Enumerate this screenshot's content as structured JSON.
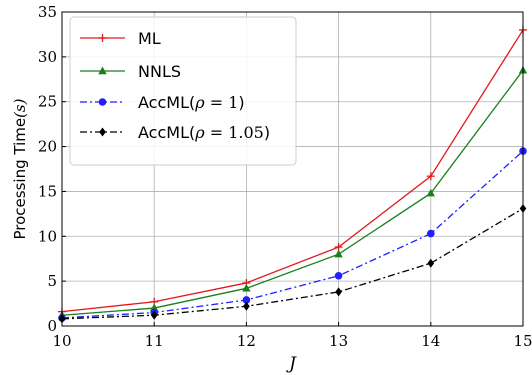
{
  "chart_data": {
    "type": "line",
    "x": [
      10,
      11,
      12,
      13,
      14,
      15
    ],
    "xlabel": "J",
    "ylabel_main": "Processing Time",
    "ylabel_unit": "(s)",
    "xlim": [
      10,
      15
    ],
    "ylim": [
      0,
      35
    ],
    "xticks": [
      "10",
      "11",
      "12",
      "13",
      "14",
      "15"
    ],
    "yticks": [
      "0",
      "5",
      "10",
      "15",
      "20",
      "25",
      "30",
      "35"
    ],
    "grid": true,
    "legend_position": "top-left",
    "series": [
      {
        "name": "ML",
        "color": "#e31a1c",
        "marker": "plus",
        "dash": "solid",
        "values": [
          1.6,
          2.7,
          4.8,
          8.8,
          16.7,
          33.0
        ]
      },
      {
        "name": "NNLS",
        "color": "#1a7f1a",
        "marker": "triangle",
        "dash": "solid",
        "values": [
          1.2,
          2.0,
          4.2,
          8.0,
          14.8,
          28.5
        ]
      },
      {
        "name_prefix": "AccML(",
        "name_math": "ρ",
        "name_rest": " = ",
        "name_num": "1",
        "name_suffix": ")",
        "color": "#1f1fff",
        "marker": "circle",
        "dash": "dashdot",
        "values": [
          0.9,
          1.5,
          2.9,
          5.6,
          10.3,
          19.5
        ]
      },
      {
        "name_prefix": "AccML(",
        "name_math": "ρ",
        "name_rest": " = ",
        "name_num": "1.05",
        "name_suffix": ")",
        "color": "#000000",
        "marker": "diamond",
        "dash": "dashdot",
        "values": [
          0.8,
          1.2,
          2.2,
          3.8,
          7.0,
          13.1
        ]
      }
    ]
  }
}
